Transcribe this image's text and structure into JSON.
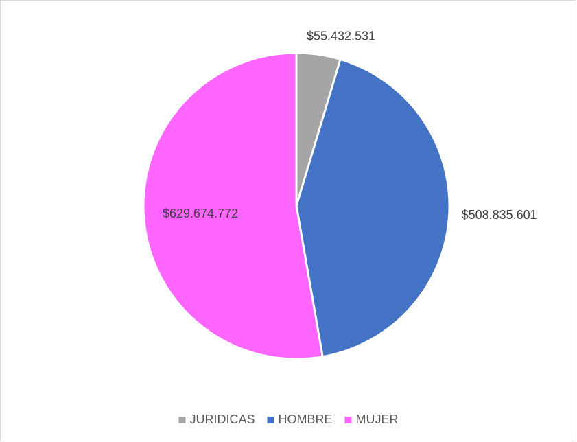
{
  "chart_data": {
    "type": "pie",
    "categories": [
      "JURIDICAS",
      "HOMBRE",
      "MUJER"
    ],
    "values": [
      55432531,
      508835601,
      629674772
    ],
    "value_labels": [
      "$55.432.531",
      "$508.835.601",
      "$629.674.772"
    ],
    "colors": [
      "#a5a5a5",
      "#4472c4",
      "#ff66ff"
    ],
    "legend": "bottom"
  }
}
